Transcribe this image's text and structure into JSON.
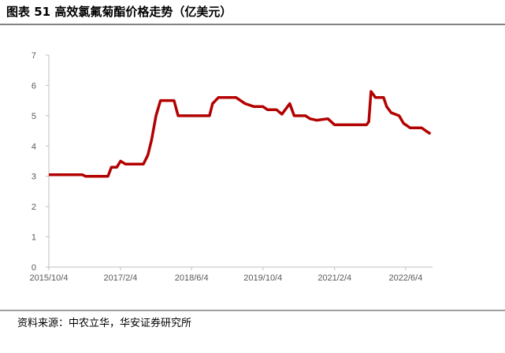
{
  "chart_data": {
    "type": "line",
    "title": "图表 51  高效氯氟菊酯价格走势（亿美元）",
    "source": "资料来源：中农立华，华安证券研究所",
    "x": [
      "2015/10/4",
      "2016/5/20",
      "2016/6/10",
      "2016/11/10",
      "2016/12/4",
      "2017/1/10",
      "2017/2/4",
      "2017/3/10",
      "2017/7/10",
      "2017/8/10",
      "2017/9/4",
      "2017/10/4",
      "2017/11/4",
      "2018/2/4",
      "2018/3/4",
      "2018/10/4",
      "2018/10/25",
      "2018/12/4",
      "2019/4/4",
      "2019/6/4",
      "2019/8/4",
      "2019/10/4",
      "2019/11/4",
      "2020/1/4",
      "2020/2/10",
      "2020/4/4",
      "2020/5/4",
      "2020/7/20",
      "2020/8/20",
      "2020/10/4",
      "2020/12/20",
      "2021/2/4",
      "2021/9/10",
      "2021/9/25",
      "2021/10/10",
      "2021/11/10",
      "2022/1/4",
      "2022/1/25",
      "2022/2/25",
      "2022/4/20",
      "2022/5/20",
      "2022/7/4",
      "2022/9/20",
      "2022/10/20",
      "2022/11/20"
    ],
    "series": [
      {
        "name": "价格",
        "color": "#b30000",
        "values": [
          3.05,
          3.05,
          3.0,
          3.0,
          3.3,
          3.3,
          3.5,
          3.4,
          3.4,
          3.7,
          4.2,
          5.0,
          5.5,
          5.5,
          5.0,
          5.0,
          5.4,
          5.6,
          5.6,
          5.4,
          5.3,
          5.3,
          5.2,
          5.2,
          5.05,
          5.4,
          5.0,
          5.0,
          4.9,
          4.85,
          4.9,
          4.7,
          4.7,
          4.8,
          5.8,
          5.6,
          5.6,
          5.3,
          5.1,
          5.0,
          4.75,
          4.6,
          4.6,
          4.5,
          4.4
        ]
      }
    ],
    "xlim": [
      "2015/10/4",
      "2022/12/4"
    ],
    "xticks": [
      "2015/10/4",
      "2017/2/4",
      "2018/6/4",
      "2019/10/4",
      "2021/2/4",
      "2022/6/4"
    ],
    "ylim": [
      0,
      7
    ],
    "yticks": [
      0,
      1,
      2,
      3,
      4,
      5,
      6,
      7
    ],
    "grid": false
  }
}
